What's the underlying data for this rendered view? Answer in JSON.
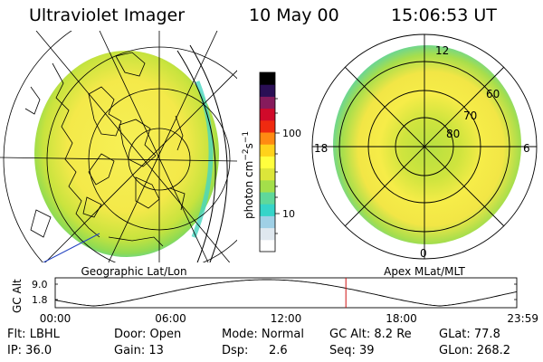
{
  "header": {
    "instrument": "Ultraviolet Imager",
    "date": "10 May 00",
    "time": "15:06:53 UT"
  },
  "left_panel": {
    "caption": "Geographic Lat/Lon"
  },
  "right_panel": {
    "caption": "Apex MLat/MLT",
    "mlt_labels": {
      "top": "12",
      "bottom": "0",
      "left": "18",
      "right": "6"
    },
    "lat_labels": [
      "60",
      "70",
      "80"
    ]
  },
  "colorbar": {
    "unit_label": "photon cm",
    "unit_exp1": "−2",
    "unit_mid": "s",
    "unit_exp2": "−1",
    "tick_high": "100",
    "tick_low": "10",
    "colors": [
      "#ffffff",
      "#dfe8ef",
      "#9fd0e6",
      "#36d4c9",
      "#5fd89a",
      "#a4df4a",
      "#dce63a",
      "#ffff3e",
      "#ffd21b",
      "#ff8a12",
      "#ef2a10",
      "#d00a2a",
      "#861b5c",
      "#2a0f55",
      "#000000"
    ]
  },
  "timeline": {
    "ylabel": "GC Alt",
    "ymax": "9.0",
    "ymin": "1.8",
    "xticks": [
      "00:00",
      "06:00",
      "12:00",
      "18:00",
      "23:59"
    ],
    "current_time_hours": 15.115,
    "altitude_min_hours": [
      2.0,
      20.0
    ]
  },
  "info": {
    "row1": {
      "flt": "Flt: LBHL",
      "door": "Door: Open",
      "mode": "Mode: Normal",
      "gcalt": "GC Alt: 8.2 Re",
      "glat": "GLat: 77.8"
    },
    "row2": {
      "ip": "IP: 36.0",
      "gain": "Gain: 13",
      "dsp_label": "Dsp:",
      "dsp_value": "2.6",
      "seq": "Seq: 39",
      "glon": "GLon: 268.2"
    }
  },
  "palette": {
    "accent_red": "#d01010",
    "aurora_yellow": "#f4ee4a",
    "aurora_green": "#9fdc4a",
    "aurora_cyan": "#48d6c0"
  }
}
